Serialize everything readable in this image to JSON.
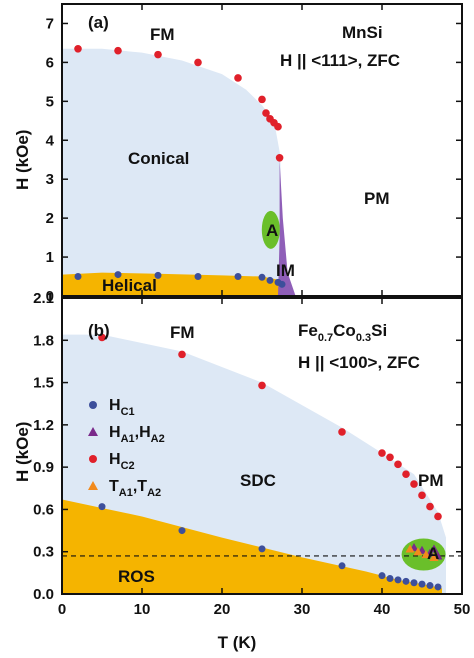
{
  "chart_data": [
    {
      "type": "scatter",
      "panel_label": "(a)",
      "ylabel": "H (kOe)",
      "xlim": [
        0,
        50
      ],
      "ylim": [
        0,
        7.5
      ],
      "yticks": [
        "0",
        "1",
        "2",
        "3",
        "4",
        "5",
        "6",
        "7"
      ],
      "phase_labels": {
        "fm": "FM",
        "material": "MnSi",
        "field_direction": "H || <111>, ZFC",
        "conical": "Conical",
        "pm": "PM",
        "a_phase": "A",
        "im": "IM",
        "helical": "Helical"
      },
      "colors": {
        "conical_region": "#dde8f5",
        "helical_region": "#f5b400",
        "im_region": "#8f5fb8",
        "a_region": "#6abf2a",
        "hc1": "#3d4f9b",
        "hc2": "#e0202a"
      },
      "series": [
        {
          "label": "HC1",
          "x": [
            2,
            7,
            12,
            17,
            22,
            25,
            26,
            27,
            27.5
          ],
          "y": [
            0.5,
            0.55,
            0.53,
            0.5,
            0.5,
            0.48,
            0.4,
            0.35,
            0.3
          ]
        },
        {
          "label": "HC2",
          "x": [
            2,
            7,
            12,
            17,
            22,
            25,
            25.5,
            26,
            26.5,
            27,
            27.2
          ],
          "y": [
            6.35,
            6.3,
            6.2,
            6.0,
            5.6,
            5.05,
            4.7,
            4.55,
            4.45,
            4.35,
            3.55
          ]
        }
      ]
    },
    {
      "type": "scatter",
      "panel_label": "(b)",
      "xlabel": "T (K)",
      "ylabel": "H (kOe)",
      "xlim": [
        0,
        50
      ],
      "ylim": [
        0,
        2.1
      ],
      "xticks": [
        "0",
        "10",
        "20",
        "30",
        "40",
        "50"
      ],
      "yticks": [
        "0.0",
        "0.3",
        "0.6",
        "0.9",
        "1.2",
        "1.5",
        "1.8",
        "2.1"
      ],
      "dashed_line_y": 0.27,
      "phase_labels": {
        "fm": "FM",
        "material_parts": [
          "Fe",
          "0.7",
          "Co",
          "0.3",
          "Si"
        ],
        "field_direction": "H || <100>, ZFC",
        "sdc": "SDC",
        "pm": "PM",
        "ros": "ROS",
        "a_phase": "A"
      },
      "legend": [
        {
          "main": "H",
          "sub": "C1",
          "main2": "",
          "sub2": ""
        },
        {
          "main": "H",
          "sub": "A1",
          "main2": ",H",
          "sub2": "A2"
        },
        {
          "main": "H",
          "sub": "C2",
          "main2": "",
          "sub2": ""
        },
        {
          "main": "T",
          "sub": "A1",
          "main2": ",T",
          "sub2": "A2"
        }
      ],
      "colors": {
        "sdc_region": "#dde8f5",
        "ros_region": "#f5b400",
        "a_region": "#6abf2a",
        "hc1": "#3d4f9b",
        "ha": "#7a2a8a",
        "hc2": "#e0202a",
        "ta": "#f28a1c"
      },
      "series": [
        {
          "label": "HC1",
          "x": [
            5,
            15,
            25,
            35,
            40,
            41,
            42,
            43,
            44,
            45,
            46,
            47
          ],
          "y": [
            0.62,
            0.45,
            0.32,
            0.2,
            0.13,
            0.11,
            0.1,
            0.09,
            0.08,
            0.07,
            0.06,
            0.05
          ]
        },
        {
          "label": "HC2",
          "x": [
            5,
            15,
            25,
            35,
            40,
            41,
            42,
            43,
            44,
            45,
            46,
            47
          ],
          "y": [
            1.82,
            1.7,
            1.48,
            1.15,
            1.0,
            0.97,
            0.92,
            0.85,
            0.78,
            0.7,
            0.62,
            0.55
          ]
        },
        {
          "label": "HA1,HA2",
          "x": [
            44,
            45,
            46,
            47,
            46.5
          ],
          "y": [
            0.33,
            0.31,
            0.29,
            0.27,
            0.32
          ]
        },
        {
          "label": "TA1,TA2",
          "x": [
            43.5,
            44.5,
            45.5,
            46.5
          ],
          "y": [
            0.32,
            0.3,
            0.28,
            0.26
          ]
        }
      ]
    }
  ]
}
